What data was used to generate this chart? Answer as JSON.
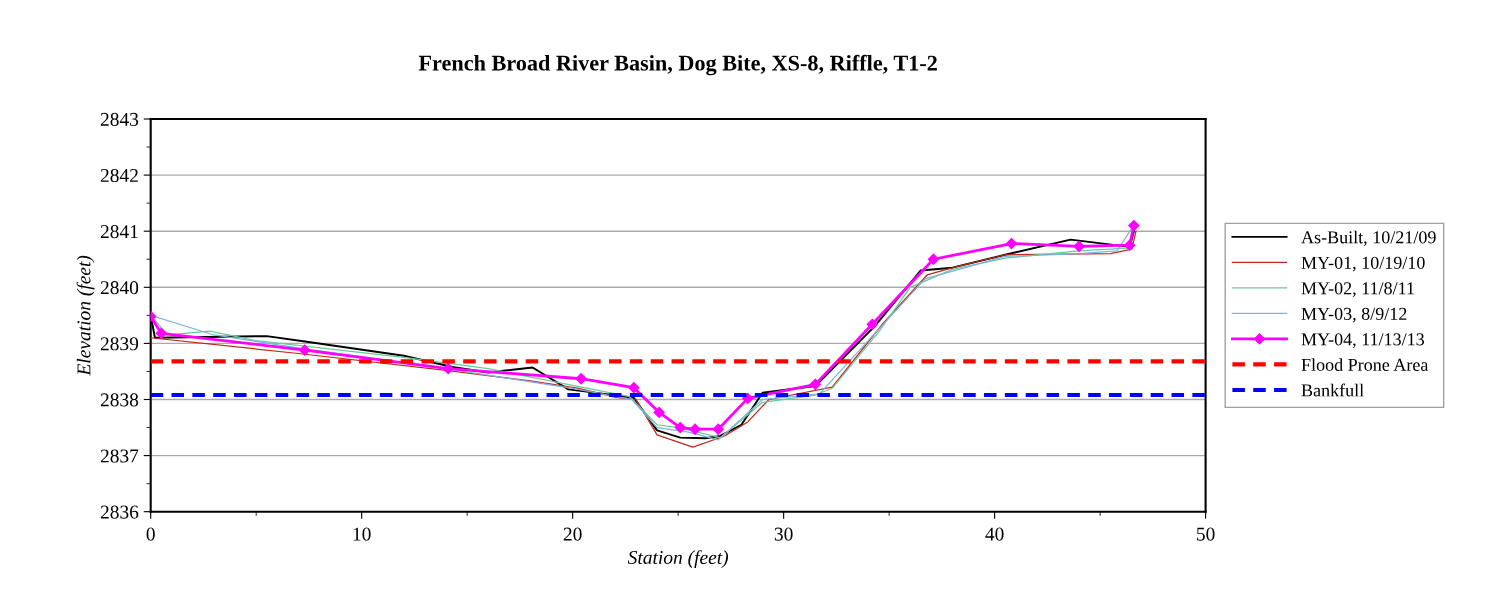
{
  "chart_data": {
    "type": "line",
    "title": "French Broad River Basin, Dog Bite, XS-8, Riffle, T1-2",
    "xlabel": "Station (feet)",
    "ylabel": "Elevation (feet)",
    "xlim": [
      0,
      50
    ],
    "xticks": [
      0,
      10,
      20,
      30,
      40,
      50
    ],
    "ylim": [
      2836,
      2843
    ],
    "yticks": [
      2836,
      2837,
      2838,
      2839,
      2840,
      2841,
      2842,
      2843
    ],
    "grid": "y",
    "legend": "right",
    "series": [
      {
        "name": "As-Built, 10/21/09",
        "color": "#000000",
        "line_style": "solid",
        "marker": "none",
        "x": [
          0,
          0.2,
          5.5,
          7.4,
          12,
          14.3,
          16.0,
          18.1,
          19.8,
          21.5,
          22.9,
          24.0,
          25.1,
          26.3,
          27.0,
          28.0,
          29.0,
          31.5,
          34.3,
          36.5,
          38.0,
          40.5,
          43.6,
          46.4,
          46.6
        ],
        "values": [
          2839.5,
          2839.1,
          2839.13,
          2839.03,
          2838.78,
          2838.58,
          2838.48,
          2838.57,
          2838.18,
          2838.1,
          2838.03,
          2837.45,
          2837.32,
          2837.31,
          2837.35,
          2837.55,
          2838.12,
          2838.24,
          2839.3,
          2840.3,
          2840.35,
          2840.58,
          2840.85,
          2840.72,
          2841.0
        ]
      },
      {
        "name": "MY-01, 10/19/10",
        "color": "#c0281e",
        "line_style": "solid",
        "marker": "none",
        "x": [
          0,
          7,
          14,
          18,
          20.3,
          22,
          23,
          24,
          25.7,
          27.2,
          28.3,
          29.3,
          32.3,
          34.7,
          36.8,
          38.2,
          40.5,
          45.5,
          46.5,
          46.7
        ],
        "values": [
          2839.1,
          2838.82,
          2838.52,
          2838.33,
          2838.2,
          2838.04,
          2838.0,
          2837.37,
          2837.15,
          2837.35,
          2837.6,
          2838.0,
          2838.22,
          2839.35,
          2840.22,
          2840.37,
          2840.58,
          2840.6,
          2840.68,
          2841.0
        ]
      },
      {
        "name": "MY-02, 11/8/11",
        "color": "#66cc99",
        "line_style": "solid",
        "marker": "none",
        "x": [
          0,
          0.8,
          2.8,
          5,
          12,
          16,
          20,
          22.7,
          24,
          25,
          27,
          29,
          31.5,
          32.3,
          34.5,
          36,
          38,
          40.5,
          44,
          46.3,
          46.6
        ],
        "values": [
          2839.5,
          2839.15,
          2839.22,
          2839.05,
          2838.75,
          2838.55,
          2838.25,
          2838.05,
          2837.55,
          2837.5,
          2837.32,
          2837.95,
          2838.08,
          2838.2,
          2839.2,
          2840.0,
          2840.32,
          2840.52,
          2840.65,
          2840.7,
          2841.05
        ]
      },
      {
        "name": "MY-03, 8/9/12",
        "color": "#7fb2dd",
        "line_style": "solid",
        "marker": "none",
        "x": [
          0,
          3,
          7,
          14,
          20,
          22.8,
          24,
          25.5,
          26.9,
          29,
          31.7,
          34.5,
          36.7,
          40.5,
          44,
          45.8,
          46.5
        ],
        "values": [
          2839.5,
          2839.15,
          2838.92,
          2838.55,
          2838.2,
          2838.0,
          2837.5,
          2837.42,
          2837.28,
          2838.0,
          2838.1,
          2839.25,
          2840.15,
          2840.55,
          2840.6,
          2840.65,
          2841.05
        ]
      },
      {
        "name": "MY-04, 11/13/13",
        "color": "#ff00ff",
        "line_style": "solid",
        "marker": "diamond",
        "x": [
          0,
          0.5,
          7.3,
          14.1,
          20.4,
          22.9,
          24.1,
          25.1,
          25.8,
          26.9,
          28.3,
          31.5,
          34.2,
          37.1,
          40.8,
          44.0,
          46.4,
          46.6
        ],
        "values": [
          2839.48,
          2839.18,
          2838.88,
          2838.55,
          2838.37,
          2838.21,
          2837.77,
          2837.5,
          2837.47,
          2837.47,
          2838.02,
          2838.27,
          2839.34,
          2840.5,
          2840.78,
          2840.73,
          2840.75,
          2841.1
        ]
      },
      {
        "name": "Flood Prone Area",
        "color": "#ff0000",
        "line_style": "dashed",
        "marker": "none",
        "x": [
          0,
          50
        ],
        "values": [
          2838.68,
          2838.68
        ]
      },
      {
        "name": "Bankfull",
        "color": "#0000ff",
        "line_style": "dashed",
        "marker": "none",
        "x": [
          0,
          50
        ],
        "values": [
          2838.08,
          2838.08
        ]
      }
    ]
  }
}
